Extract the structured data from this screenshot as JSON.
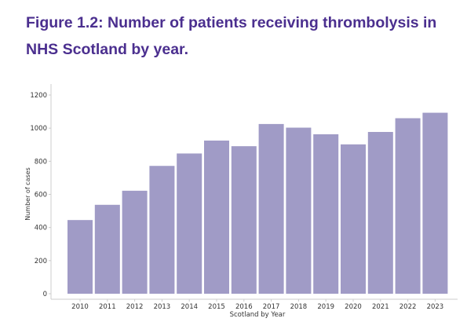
{
  "figure": {
    "title": "Figure 1.2: Number of patients receiving thrombolysis in NHS Scotland by year."
  },
  "chart_data": {
    "type": "bar",
    "title": "",
    "xlabel": "Scotland by Year",
    "ylabel": "Number of cases",
    "categories": [
      "2010",
      "2011",
      "2012",
      "2013",
      "2014",
      "2015",
      "2016",
      "2017",
      "2018",
      "2019",
      "2020",
      "2021",
      "2022",
      "2023"
    ],
    "values": [
      445,
      537,
      622,
      772,
      847,
      925,
      891,
      1025,
      1003,
      963,
      902,
      977,
      1060,
      1093
    ],
    "ylim": [
      0,
      1200
    ],
    "yticks": [
      0,
      200,
      400,
      600,
      800,
      1000,
      1200
    ],
    "grid": false,
    "legend": "none",
    "bar_color": "#a09bc6"
  }
}
